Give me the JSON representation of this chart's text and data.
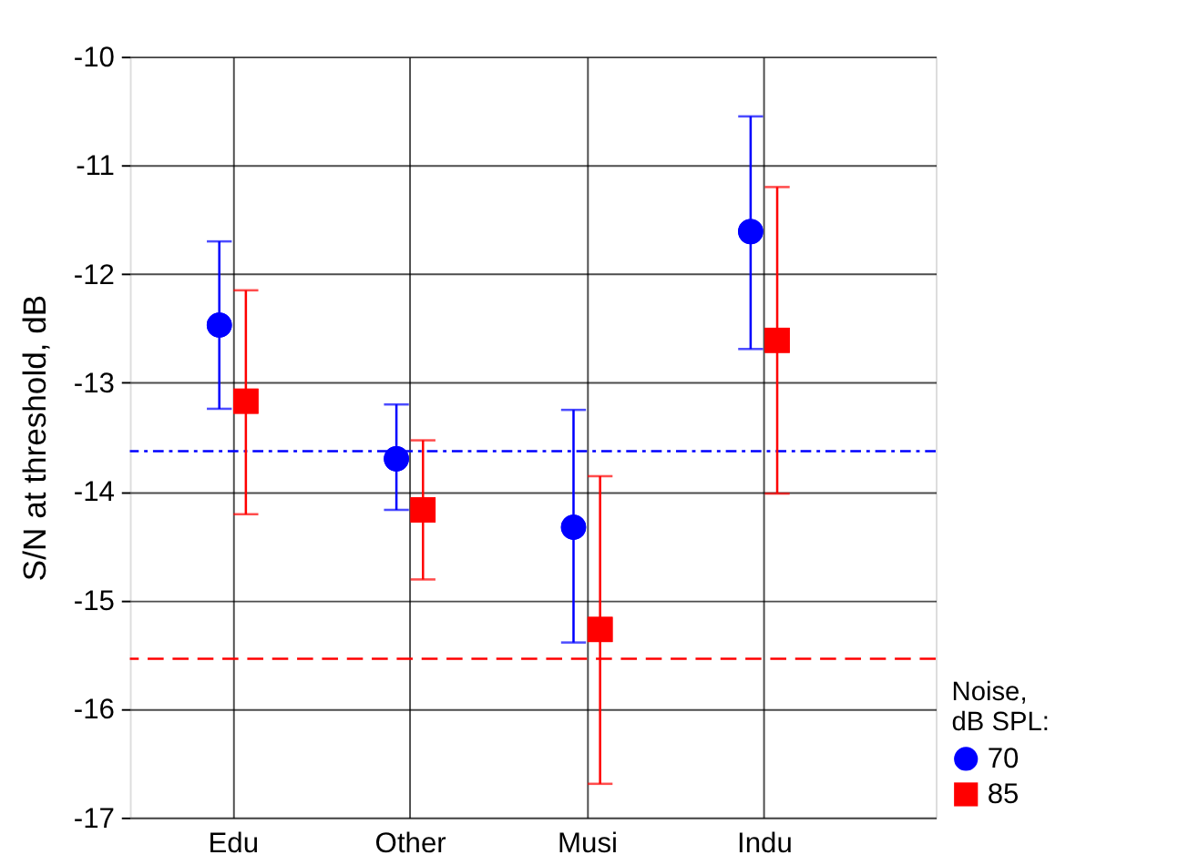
{
  "chart_data": {
    "type": "scatter",
    "ylabel": "S/N at threshold,  dB",
    "legend_title": "Noise,\ndB SPL:",
    "categories": [
      "Edu",
      "Other",
      "Musi",
      "Indu"
    ],
    "series": [
      {
        "name": "70",
        "color": "#0000ff",
        "marker": "circle",
        "values": [
          -12.47,
          -13.7,
          -14.33,
          -11.61
        ],
        "errors": [
          [
            -13.24,
            -11.7
          ],
          [
            -14.17,
            -13.2
          ],
          [
            -15.39,
            -13.25
          ],
          [
            -12.69,
            -10.55
          ]
        ]
      },
      {
        "name": "85",
        "color": "#ff0000",
        "marker": "square",
        "values": [
          -13.17,
          -14.17,
          -15.27,
          -12.61
        ],
        "errors": [
          [
            -14.21,
            -12.15
          ],
          [
            -14.81,
            -13.53
          ],
          [
            -16.69,
            -13.86
          ],
          [
            -14.02,
            -11.2
          ]
        ]
      }
    ],
    "ref_lines": [
      {
        "axis": "y",
        "value": -13.63,
        "color": "#0000ff",
        "line_style": "dashdot"
      },
      {
        "axis": "y",
        "value": -15.54,
        "color": "#ff0000",
        "line_style": "dashed"
      }
    ],
    "ylim": [
      -17,
      -10
    ],
    "yticks": [
      -17,
      -16,
      -15,
      -14,
      -13,
      -12,
      -11,
      -10
    ],
    "grid": true,
    "legend": "bottom right"
  }
}
